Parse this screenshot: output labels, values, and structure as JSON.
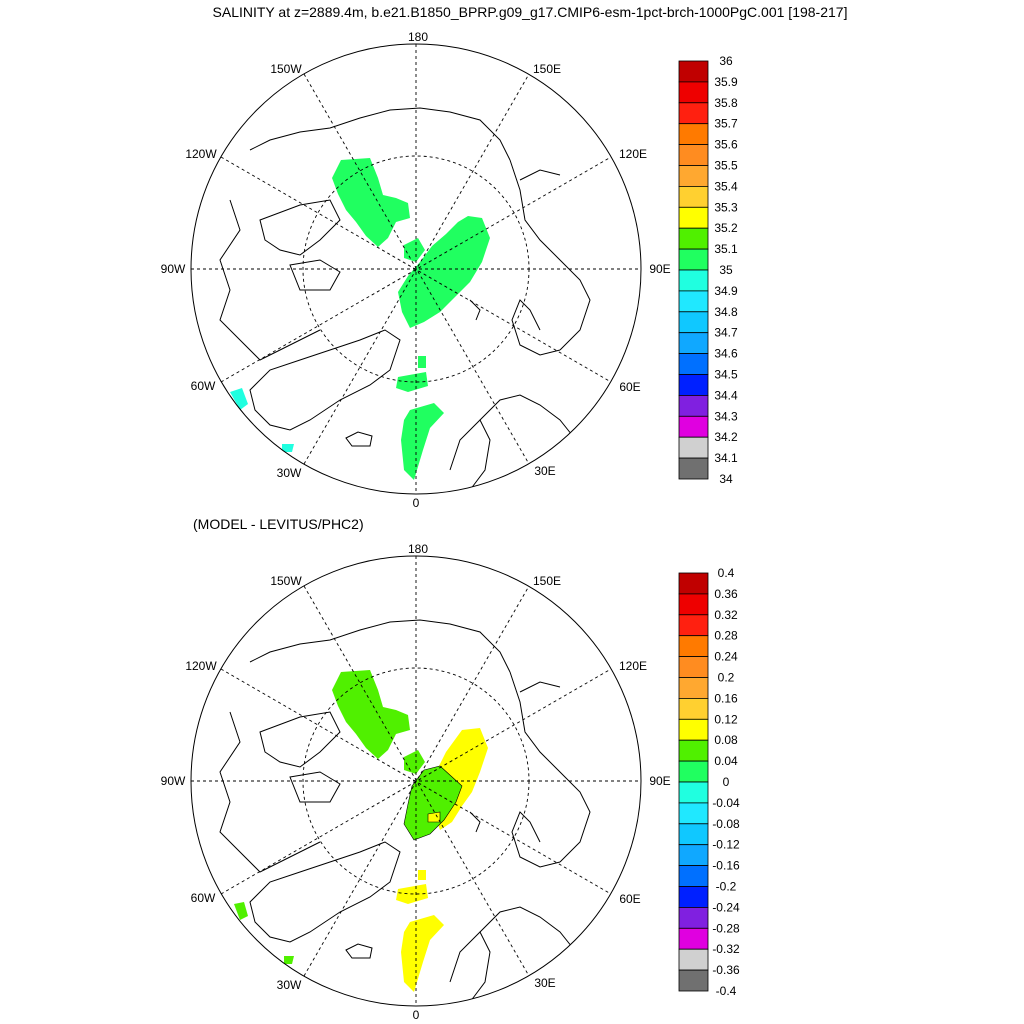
{
  "title": "SALINITY at z=2889.4m, b.e21.B1850_BPRP.g09_g17.CMIP6-esm-1pct-brch-1000PgC.001 [198-217]",
  "subtitle": "(MODEL - LEVITUS/PHC2)",
  "longitude_labels": {
    "deg180": "180",
    "deg150E": "150E",
    "deg120E": "120E",
    "deg90E": "90E",
    "deg60E": "60E",
    "deg30E": "30E",
    "deg0": "0",
    "deg30W": "30W",
    "deg60W": "60W",
    "deg90W": "90W",
    "deg120W": "120W",
    "deg150W": "150W"
  },
  "colors": {
    "mid_green": "#20ff60",
    "lime": "#50f000",
    "yellow": "#ffff00",
    "cyan": "#20ffe0",
    "coast": "#000000",
    "grid": "#000000"
  },
  "top_panel": {
    "colorbar_labels": [
      "36",
      "35.9",
      "35.8",
      "35.7",
      "35.6",
      "35.5",
      "35.4",
      "35.3",
      "35.2",
      "35.1",
      "35",
      "34.9",
      "34.8",
      "34.7",
      "34.6",
      "34.5",
      "34.4",
      "34.3",
      "34.2",
      "34.1",
      "34"
    ],
    "colorbar_colors": [
      "#c00000",
      "#ee0000",
      "#ff2010",
      "#ff7a00",
      "#ff8c20",
      "#ffa830",
      "#ffd030",
      "#ffff00",
      "#50f000",
      "#20ff60",
      "#20ffe0",
      "#20e8ff",
      "#10c8ff",
      "#10a8ff",
      "#0070ff",
      "#0020ff",
      "#8020e0",
      "#e000e0",
      "#d0d0d0",
      "#707070"
    ]
  },
  "bottom_panel": {
    "colorbar_labels": [
      "0.4",
      "0.36",
      "0.32",
      "0.28",
      "0.24",
      "0.2",
      "0.16",
      "0.12",
      "0.08",
      "0.04",
      "0",
      "-0.04",
      "-0.08",
      "-0.12",
      "-0.16",
      "-0.2",
      "-0.24",
      "-0.28",
      "-0.32",
      "-0.36",
      "-0.4"
    ],
    "colorbar_colors": [
      "#c00000",
      "#ee0000",
      "#ff2010",
      "#ff7a00",
      "#ff8c20",
      "#ffa830",
      "#ffd030",
      "#ffff00",
      "#50f000",
      "#20ff60",
      "#20ffe0",
      "#20e8ff",
      "#10c8ff",
      "#10a8ff",
      "#0070ff",
      "#0020ff",
      "#8020e0",
      "#e000e0",
      "#d0d0d0",
      "#707070"
    ]
  }
}
